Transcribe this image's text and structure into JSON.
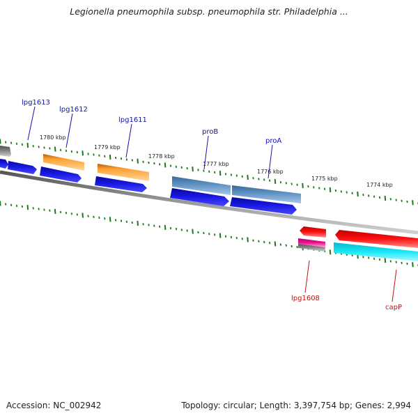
{
  "title": "Legionella pneumophila subsp. pneumophila str. Philadelphia ...",
  "footer": {
    "accession": "Accession: NC_002942",
    "summary": "Topology: circular; Length: 3,397,754 bp; Genes: 2,994"
  },
  "scale_labels": [
    "1780 kbp",
    "1779 kbp",
    "1778 kbp",
    "1777 kbp",
    "1776 kbp",
    "1775 kbp",
    "1774 kbp"
  ],
  "gene_labels_top": [
    "lpg1613",
    "lpg1612",
    "lpg1611",
    "proB",
    "proA"
  ],
  "gene_labels_bottom": [
    "lpg1608",
    "capP"
  ],
  "colors": {
    "backbone": "#7a7a7a",
    "tick": "#1a7a1a",
    "cds_blue": "#1515d8",
    "gene_orange": "#ff9a1a",
    "gene_steel": "#4a7fb0",
    "gene_red": "#ee1010",
    "gene_cyan": "#10e0f0",
    "gene_magenta": "#e0108a",
    "gene_gray": "#808080",
    "label_blue": "#1010b0",
    "label_red": "#c01010"
  }
}
